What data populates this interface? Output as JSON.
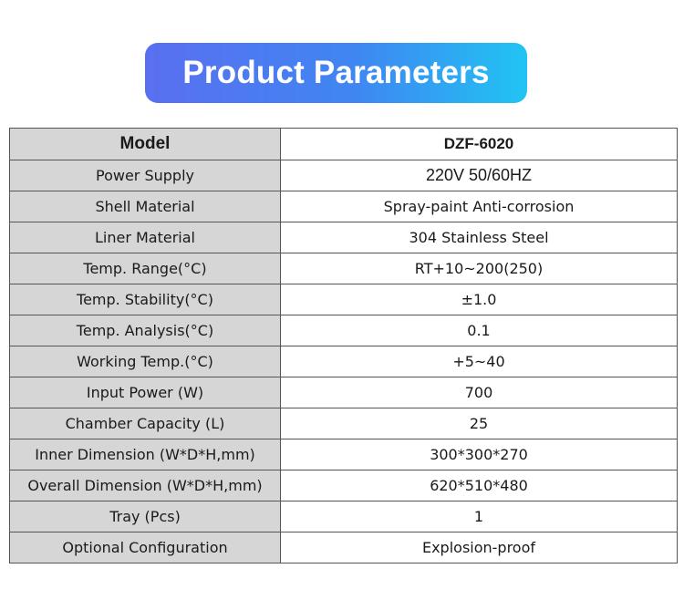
{
  "title": "Product Parameters",
  "colors": {
    "banner_start": "#5a6ff0",
    "banner_end": "#21c4f3",
    "label_bg": "#d6d6d6",
    "border": "#555555"
  },
  "table": {
    "header": {
      "label": "Model",
      "value": "DZF-6020"
    },
    "rows": [
      {
        "label": "Power Supply",
        "value": "220V 50/60HZ"
      },
      {
        "label": "Shell Material",
        "value": "Spray-paint Anti-corrosion"
      },
      {
        "label": "Liner Material",
        "value": "304 Stainless Steel"
      },
      {
        "label": "Temp. Range(°C)",
        "value": "RT+10~200(250)"
      },
      {
        "label": "Temp. Stability(°C)",
        "value": "±1.0"
      },
      {
        "label": "Temp. Analysis(°C)",
        "value": "0.1"
      },
      {
        "label": "Working Temp.(°C)",
        "value": "+5~40"
      },
      {
        "label": "Input Power (W)",
        "value": "700"
      },
      {
        "label": "Chamber Capacity (L)",
        "value": "25"
      },
      {
        "label": "Inner Dimension (W*D*H,mm)",
        "value": "300*300*270"
      },
      {
        "label": "Overall Dimension (W*D*H,mm)",
        "value": "620*510*480"
      },
      {
        "label": "Tray (Pcs)",
        "value": "1"
      },
      {
        "label": "Optional Configuration",
        "value": "Explosion-proof"
      }
    ]
  }
}
